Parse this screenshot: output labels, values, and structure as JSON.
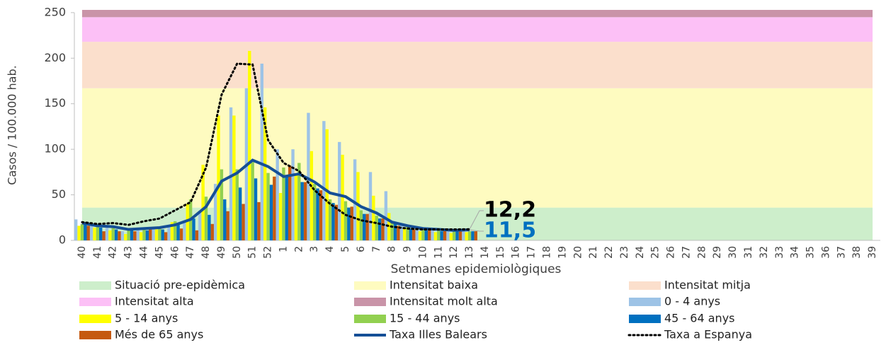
{
  "chart_data": {
    "type": "bar",
    "y_label": "Casos / 100.000 hab.",
    "x_label": "Setmanes epidemiològiques",
    "categories": [
      "40",
      "41",
      "42",
      "43",
      "44",
      "45",
      "46",
      "47",
      "48",
      "49",
      "50",
      "51",
      "52",
      "1",
      "2",
      "3",
      "4",
      "5",
      "6",
      "7",
      "8",
      "9",
      "10",
      "11",
      "12",
      "13",
      "14",
      "15",
      "16",
      "17",
      "18",
      "19",
      "20",
      "21",
      "22",
      "23",
      "24",
      "25",
      "26",
      "27",
      "28",
      "29",
      "30",
      "31",
      "32",
      "33",
      "34",
      "35",
      "36",
      "37",
      "38",
      "39"
    ],
    "ylim": [
      0,
      253
    ],
    "yticks": [
      0,
      50,
      100,
      150,
      200,
      250
    ],
    "bands": [
      {
        "name": "Situació pre-epidèmica",
        "color": "#cdeecb",
        "value": 36
      },
      {
        "name": "Intensitat baixa",
        "color": "#fefbc0",
        "value": 131
      },
      {
        "name": "Intensitat mitja",
        "color": "#fbdfcc",
        "value": 51
      },
      {
        "name": "Intensitat alta",
        "color": "#fcc0f6",
        "value": 27
      },
      {
        "name": "Intensitat molt alta",
        "color": "#c994a8",
        "value": 8
      }
    ],
    "series": [
      {
        "name": "0 - 4 anys",
        "kind": "bar",
        "color": "#9dc3e6",
        "values": [
          23,
          16,
          14,
          10,
          13,
          14,
          16,
          22,
          30,
          62,
          146,
          167,
          194,
          100,
          100,
          140,
          131,
          108,
          89,
          75,
          54,
          17,
          12,
          11,
          11,
          12,
          null,
          null,
          null,
          null,
          null,
          null,
          null,
          null,
          null,
          null,
          null,
          null,
          null,
          null,
          null,
          null,
          null,
          null,
          null,
          null,
          null,
          null,
          null,
          null,
          null,
          null
        ]
      },
      {
        "name": "5 - 14 anys",
        "kind": "bar",
        "color": "#ffff00",
        "values": [
          16,
          14,
          11,
          7,
          9,
          12,
          20,
          40,
          83,
          137,
          137,
          208,
          146,
          52,
          72,
          98,
          122,
          94,
          75,
          49,
          30,
          14,
          10,
          9,
          8,
          9,
          null,
          null,
          null,
          null,
          null,
          null,
          null,
          null,
          null,
          null,
          null,
          null,
          null,
          null,
          null,
          null,
          null,
          null,
          null,
          null,
          null,
          null,
          null,
          null,
          null,
          null
        ]
      },
      {
        "name": "15 - 44 anys",
        "kind": "bar",
        "color": "#92d050",
        "values": [
          18,
          18,
          14,
          13,
          13,
          14,
          21,
          45,
          48,
          78,
          78,
          86,
          74,
          80,
          85,
          62,
          45,
          43,
          33,
          27,
          21,
          15,
          12,
          11,
          10,
          10,
          null,
          null,
          null,
          null,
          null,
          null,
          null,
          null,
          null,
          null,
          null,
          null,
          null,
          null,
          null,
          null,
          null,
          null,
          null,
          null,
          null,
          null,
          null,
          null,
          null,
          null
        ]
      },
      {
        "name": "45 - 64 anys",
        "kind": "bar",
        "color": "#0070c0",
        "values": [
          17,
          14,
          12,
          13,
          11,
          12,
          17,
          24,
          28,
          45,
          58,
          68,
          61,
          70,
          64,
          57,
          41,
          36,
          29,
          24,
          18,
          13,
          11,
          10,
          10,
          10,
          null,
          null,
          null,
          null,
          null,
          null,
          null,
          null,
          null,
          null,
          null,
          null,
          null,
          null,
          null,
          null,
          null,
          null,
          null,
          null,
          null,
          null,
          null,
          null,
          null,
          null
        ]
      },
      {
        "name": "Més de 65 anys",
        "kind": "bar",
        "color": "#c55a11",
        "values": [
          16,
          10,
          10,
          10,
          12,
          9,
          13,
          11,
          18,
          32,
          40,
          42,
          70,
          82,
          64,
          55,
          39,
          37,
          29,
          24,
          16,
          12,
          12,
          11,
          10,
          10,
          null,
          null,
          null,
          null,
          null,
          null,
          null,
          null,
          null,
          null,
          null,
          null,
          null,
          null,
          null,
          null,
          null,
          null,
          null,
          null,
          null,
          null,
          null,
          null,
          null,
          null
        ]
      },
      {
        "name": "Taxa  Illes Balears",
        "kind": "line",
        "color": "#154f96",
        "values": [
          19,
          16,
          15,
          12,
          13,
          14,
          17,
          23,
          37,
          65,
          74,
          88,
          81,
          70,
          73,
          64,
          52,
          48,
          37,
          30,
          20,
          16,
          13,
          12,
          11,
          11.5,
          null,
          null,
          null,
          null,
          null,
          null,
          null,
          null,
          null,
          null,
          null,
          null,
          null,
          null,
          null,
          null,
          null,
          null,
          null,
          null,
          null,
          null,
          null,
          null,
          null,
          null
        ],
        "value_labels": [
          null,
          null,
          null,
          null,
          null,
          null,
          null,
          null,
          null,
          null,
          null,
          null,
          null,
          null,
          null,
          null,
          null,
          null,
          null,
          null,
          null,
          null,
          null,
          null,
          null,
          "11,5",
          null,
          null,
          null,
          null,
          null,
          null,
          null,
          null,
          null,
          null,
          null,
          null,
          null,
          null,
          null,
          null,
          null,
          null,
          null,
          null,
          null,
          null,
          null,
          null,
          null,
          null
        ]
      },
      {
        "name": "Taxa a Espanya",
        "kind": "dotted",
        "color": "#000000",
        "values": [
          20,
          18,
          19,
          17,
          21,
          24,
          33,
          42,
          80,
          160,
          194,
          193,
          110,
          85,
          76,
          55,
          40,
          28,
          22,
          19,
          15,
          13,
          12,
          12,
          12,
          12.2,
          null,
          null,
          null,
          null,
          null,
          null,
          null,
          null,
          null,
          null,
          null,
          null,
          null,
          null,
          null,
          null,
          null,
          null,
          null,
          null,
          null,
          null,
          null,
          null,
          null,
          null
        ],
        "value_labels": [
          null,
          null,
          null,
          null,
          null,
          null,
          null,
          null,
          null,
          null,
          null,
          null,
          null,
          null,
          null,
          null,
          null,
          null,
          null,
          null,
          null,
          null,
          null,
          null,
          null,
          "12,2",
          null,
          null,
          null,
          null,
          null,
          null,
          null,
          null,
          null,
          null,
          null,
          null,
          null,
          null,
          null,
          null,
          null,
          null,
          null,
          null,
          null,
          null,
          null,
          null,
          null,
          null
        ]
      }
    ]
  }
}
